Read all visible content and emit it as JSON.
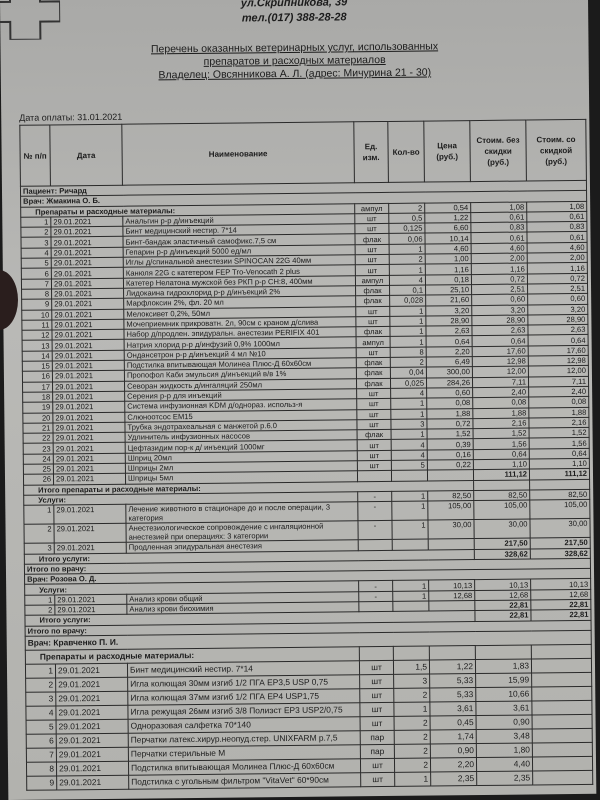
{
  "header": {
    "address": "ул.Скрипникова, 39",
    "phone": "тел.(017) 388-28-28",
    "title_line1": "Перечень оказанных ветеринарных услуг, использованных",
    "title_line2": "препаратов и расходных материалов",
    "owner_line": "Владелец: Овсянникова А. Л. (адрес: Мичурина 21 - 30)",
    "payment_date": "Дата оплаты: 31.01.2021"
  },
  "columns": [
    "№ п/п",
    "Дата",
    "Наименование",
    "Ед. изм.",
    "Кол-во",
    "Цена (руб.)",
    "Стоим. без скидки (руб.)",
    "Стоим. со скидкой (руб.)"
  ],
  "patient": "Пациент: Ричард",
  "doctors": [
    {
      "label": "Врач: Жмакина О. Б.",
      "groups": [
        {
          "label": "Препараты и расходные материалы:",
          "values": {
            "unit": "ампул",
            "qty": "2",
            "price": "0,54",
            "cost": "1,08",
            "cost_disc": "1,08"
          },
          "items": [
            {
              "n": "1",
              "date": "29.01.2021",
              "name": "Анальгин р-р д/инъекций",
              "unit": "шт",
              "qty": "0,5",
              "price": "1,22",
              "cost": "0,61",
              "cost_disc": "0,61"
            },
            {
              "n": "2",
              "date": "29.01.2021",
              "name": "Бинт медицинский нестир. 7*14",
              "unit": "шт",
              "qty": "0,125",
              "price": "6,60",
              "cost": "0,83",
              "cost_disc": "0,83"
            },
            {
              "n": "3",
              "date": "29.01.2021",
              "name": "Бинт-бандаж эластичный самофикс.7,5 см",
              "unit": "флак",
              "qty": "0,06",
              "price": "10,14",
              "cost": "0,61",
              "cost_disc": "0,61"
            },
            {
              "n": "4",
              "date": "29.01.2021",
              "name": "Гепарин р-р д/инъекций  5000 ед/мл",
              "unit": "шт",
              "qty": "1",
              "price": "4,60",
              "cost": "4,60",
              "cost_disc": "4,60"
            },
            {
              "n": "5",
              "date": "29.01.2021",
              "name": "Иглы д/спинальной анестезии SPINOCAN 22G 40мм",
              "unit": "шт",
              "qty": "2",
              "price": "1,00",
              "cost": "2,00",
              "cost_disc": "2,00"
            },
            {
              "n": "6",
              "date": "29.01.2021",
              "name": "Канюля 22G с катетером FEP Tro-Venocath 2 plus",
              "unit": "шт",
              "qty": "1",
              "price": "1,16",
              "cost": "1,16",
              "cost_disc": "1,16"
            },
            {
              "n": "7",
              "date": "29.01.2021",
              "name": "Катетер Нелатона мужской без РКП р-р CH:8, 400мм",
              "unit": "ампул",
              "qty": "4",
              "price": "0,18",
              "cost": "0,72",
              "cost_disc": "0,72"
            },
            {
              "n": "8",
              "date": "29.01.2021",
              "name": "Лидокаина гидрохлорид р-р д/инъекций 2%",
              "unit": "флак",
              "qty": "0,1",
              "price": "25,10",
              "cost": "2,51",
              "cost_disc": "2,51"
            },
            {
              "n": "9",
              "date": "29.01.2021",
              "name": "Марфлоксин 2%, фл. 20 мл",
              "unit": "флак",
              "qty": "0,028",
              "price": "21,60",
              "cost": "0,60",
              "cost_disc": "0,60"
            },
            {
              "n": "10",
              "date": "29.01.2021",
              "name": "Мелоксивет 0,2%, 50мл",
              "unit": "шт",
              "qty": "1",
              "price": "3,20",
              "cost": "3,20",
              "cost_disc": "3,20"
            },
            {
              "n": "11",
              "date": "29.01.2021",
              "name": "Мочеприемник прикроватн. 2л, 90см с краном д/слива",
              "unit": "шт",
              "qty": "1",
              "price": "28,90",
              "cost": "28,90",
              "cost_disc": "28,90"
            },
            {
              "n": "12",
              "date": "29.01.2021",
              "name": "Набор д/продлен. эпидуральн. анестезии PERIFIX 401",
              "unit": "флак",
              "qty": "1",
              "price": "2,63",
              "cost": "2,63",
              "cost_disc": "2,63"
            },
            {
              "n": "13",
              "date": "29.01.2021",
              "name": "Натрия хлорид р-р д/инфузий 0,9% 1000мл",
              "unit": "ампул",
              "qty": "1",
              "price": "0,64",
              "cost": "0,64",
              "cost_disc": "0,64"
            },
            {
              "n": "14",
              "date": "29.01.2021",
              "name": "Ондансетрон р-р д/инъекций 4 мл  №10",
              "unit": "шт",
              "qty": "8",
              "price": "2,20",
              "cost": "17,60",
              "cost_disc": "17,60"
            },
            {
              "n": "15",
              "date": "29.01.2021",
              "name": "Подстилка впитывающая Молинеа Плюс-Д 60х60см",
              "unit": "флак",
              "qty": "2",
              "price": "6,49",
              "cost": "12,98",
              "cost_disc": "12,98"
            },
            {
              "n": "16",
              "date": "29.01.2021",
              "name": "Пропофол Каби эмульсия д/инъекций в/в 1%",
              "unit": "флак",
              "qty": "0,04",
              "price": "300,00",
              "cost": "12,00",
              "cost_disc": "12,00"
            },
            {
              "n": "17",
              "date": "29.01.2021",
              "name": "Севоран жидкость д/ингаляций 250мл",
              "unit": "флак",
              "qty": "0,025",
              "price": "284,26",
              "cost": "7,11",
              "cost_disc": "7,11"
            },
            {
              "n": "18",
              "date": "29.01.2021",
              "name": "Серения р-р для инъекций",
              "unit": "шт",
              "qty": "4",
              "price": "0,60",
              "cost": "2,40",
              "cost_disc": "2,40"
            },
            {
              "n": "19",
              "date": "29.01.2021",
              "name": "Система инфузионная KDM д/однораз. использ-я",
              "unit": "шт",
              "qty": "1",
              "price": "0,08",
              "cost": "0,08",
              "cost_disc": "0,08"
            },
            {
              "n": "20",
              "date": "29.01.2021",
              "name": "Слюноотсос EM15",
              "unit": "шт",
              "qty": "1",
              "price": "1,88",
              "cost": "1,88",
              "cost_disc": "1,88"
            },
            {
              "n": "21",
              "date": "29.01.2021",
              "name": "Трубка эндотрахеальная с манжетой р.6.0",
              "unit": "шт",
              "qty": "3",
              "price": "0,72",
              "cost": "2,16",
              "cost_disc": "2,16"
            },
            {
              "n": "22",
              "date": "29.01.2021",
              "name": "Удлинитель инфузионных насосов",
              "unit": "флак",
              "qty": "1",
              "price": "1,52",
              "cost": "1,52",
              "cost_disc": "1,52"
            },
            {
              "n": "23",
              "date": "29.01.2021",
              "name": "Цефтазидим пор-к д/ инъекций 1000мг",
              "unit": "шт",
              "qty": "4",
              "price": "0,39",
              "cost": "1,56",
              "cost_disc": "1,56"
            },
            {
              "n": "24",
              "date": "29.01.2021",
              "name": "Шприц 20мл",
              "unit": "шт",
              "qty": "4",
              "price": "0,16",
              "cost": "0,64",
              "cost_disc": "0,64"
            },
            {
              "n": "25",
              "date": "29.01.2021",
              "name": "Шприцы 2мл",
              "unit": "шт",
              "qty": "5",
              "price": "0,22",
              "cost": "1,10",
              "cost_disc": "1,10"
            },
            {
              "n": "26",
              "date": "29.01.2021",
              "name": "Шприцы 5мл",
              "unit": "",
              "qty": "",
              "price": "",
              "cost": "111,12",
              "cost_disc": "111,12"
            }
          ],
          "total_label": "Итого препараты и расходные материалы:",
          "total": {
            "cost": "",
            "cost_disc": ""
          }
        },
        {
          "label": "Услуги:",
          "values": {
            "unit": "-",
            "qty": "1",
            "price": "82,50",
            "cost": "82,50",
            "cost_disc": "82,50"
          },
          "items": [
            {
              "n": "1",
              "date": "29.01.2021",
              "name": "Лечение животного в стационаре до и после операции, 3 категория",
              "unit": "-",
              "qty": "1",
              "price": "105,00",
              "cost": "105,00",
              "cost_disc": "105,00"
            },
            {
              "n": "2",
              "date": "29.01.2021",
              "name": "Анестезиологическое сопровождение с ингаляционной анестезией  при операциях: 3 категории",
              "unit": "-",
              "qty": "1",
              "price": "30,00",
              "cost": "30,00",
              "cost_disc": "30,00"
            },
            {
              "n": "3",
              "date": "29.01.2021",
              "name": "Продленная эпидуральная анестезия",
              "unit": "",
              "qty": "",
              "price": "",
              "cost": "217,50",
              "cost_disc": "217,50"
            }
          ],
          "total_label": "Итого услуги:",
          "total": {
            "cost": "328,62",
            "cost_disc": "328,62"
          }
        }
      ],
      "total_label": "Итого по врачу:"
    },
    {
      "label": "Врач: Розова О. Д.",
      "groups": [
        {
          "label": "Услуги:",
          "values": {
            "unit": "-",
            "qty": "1",
            "price": "10,13",
            "cost": "10,13",
            "cost_disc": "10,13"
          },
          "items": [
            {
              "n": "1",
              "date": "29.01.2021",
              "name": "Анализ крови общий",
              "unit": "-",
              "qty": "1",
              "price": "12,68",
              "cost": "12,68",
              "cost_disc": "12,68"
            },
            {
              "n": "2",
              "date": "29.01.2021",
              "name": "Анализ крови биохимия",
              "unit": "",
              "qty": "",
              "price": "",
              "cost": "22,81",
              "cost_disc": "22,81"
            }
          ],
          "total_label": "Итого услуги:",
          "total": {
            "cost": "22,81",
            "cost_disc": "22,81"
          }
        }
      ],
      "total_label": "Итого по врачу:"
    },
    {
      "label": "Врач: Кравченко П. И.",
      "groups": [
        {
          "label": "Препараты и расходные материалы:",
          "values": {
            "unit": "",
            "qty": "",
            "price": "",
            "cost": "",
            "cost_disc": ""
          },
          "items": [
            {
              "n": "1",
              "date": "29.01.2021",
              "name": "Бинт медицинский нестир. 7*14",
              "unit": "шт",
              "qty": "1,5",
              "price": "1,22",
              "cost": "1,83",
              "cost_disc": ""
            },
            {
              "n": "2",
              "date": "29.01.2021",
              "name": "Игла колющая 30мм изгиб 1/2 ПГА EP3,5 USP 0,75",
              "unit": "шт",
              "qty": "3",
              "price": "5,33",
              "cost": "15,99",
              "cost_disc": ""
            },
            {
              "n": "3",
              "date": "29.01.2021",
              "name": "Игла колющая 37мм изгиб 1/2 ПГА EP4 USP1,75",
              "unit": "шт",
              "qty": "2",
              "price": "5,33",
              "cost": "10,66",
              "cost_disc": ""
            },
            {
              "n": "4",
              "date": "29.01.2021",
              "name": "Игла режущая 26мм изгиб 3/8 Полиэст EP3 USP2/0,75",
              "unit": "шт",
              "qty": "1",
              "price": "3,61",
              "cost": "3,61",
              "cost_disc": ""
            },
            {
              "n": "5",
              "date": "29.01.2021",
              "name": "Одноразовая салфетка 70*140",
              "unit": "шт",
              "qty": "2",
              "price": "0,45",
              "cost": "0,90",
              "cost_disc": ""
            },
            {
              "n": "6",
              "date": "29.01.2021",
              "name": "Перчатки латекс.хирур.неопуд.стер. UNIXFARM р.7,5",
              "unit": "пар",
              "qty": "2",
              "price": "1,74",
              "cost": "3,48",
              "cost_disc": ""
            },
            {
              "n": "7",
              "date": "29.01.2021",
              "name": "Перчатки стерильные М",
              "unit": "пар",
              "qty": "2",
              "price": "0,90",
              "cost": "1,80",
              "cost_disc": ""
            },
            {
              "n": "8",
              "date": "29.01.2021",
              "name": "Подстилка впитывающая Молинеа Плюс-Д 60х60см",
              "unit": "шт",
              "qty": "2",
              "price": "2,20",
              "cost": "4,40",
              "cost_disc": ""
            },
            {
              "n": "9",
              "date": "29.01.2021",
              "name": "Подстилка с угольным фильтром \"VitaVet\" 60*90см",
              "unit": "шт",
              "qty": "1",
              "price": "2,35",
              "cost": "2,35",
              "cost_disc": ""
            }
          ]
        }
      ]
    }
  ]
}
